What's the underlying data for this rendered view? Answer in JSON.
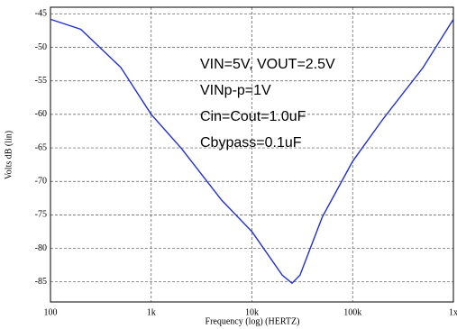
{
  "chart_data": {
    "type": "line",
    "x_label": "Frequency (log) (HERTZ)",
    "y_label": "Volts dB (lin)",
    "annotations": [
      "VIN=5V, VOUT=2.5V",
      "VINp-p=1V",
      "Cin=Cout=1.0uF",
      "Cbypass=0.1uF"
    ],
    "x": [
      100,
      200,
      500,
      1000,
      2000,
      5000,
      10000,
      20000,
      25000,
      30000,
      50000,
      100000,
      200000,
      500000,
      1000000
    ],
    "series": [
      {
        "name": "Volts dB",
        "color": "#1f2fd8",
        "values": [
          -45.8,
          -47.3,
          -53,
          -60,
          -65.1,
          -72.8,
          -77.5,
          -84,
          -85.2,
          -84,
          -75.3,
          -67,
          -60.7,
          -53,
          -45.8
        ]
      }
    ],
    "xlim": [
      100,
      1000000
    ],
    "xscale": "log",
    "xticks": [
      100,
      {
        "value": 1000,
        "label": "1k"
      },
      {
        "value": 10000,
        "label": "10k"
      },
      {
        "value": 100000,
        "label": "100k"
      },
      {
        "value": 1000000,
        "label": "1x"
      }
    ],
    "ylim": [
      -88,
      -44
    ],
    "yticks": [
      -45,
      -50,
      -55,
      -60,
      -65,
      -70,
      -75,
      -80,
      -85
    ],
    "grid": true
  }
}
